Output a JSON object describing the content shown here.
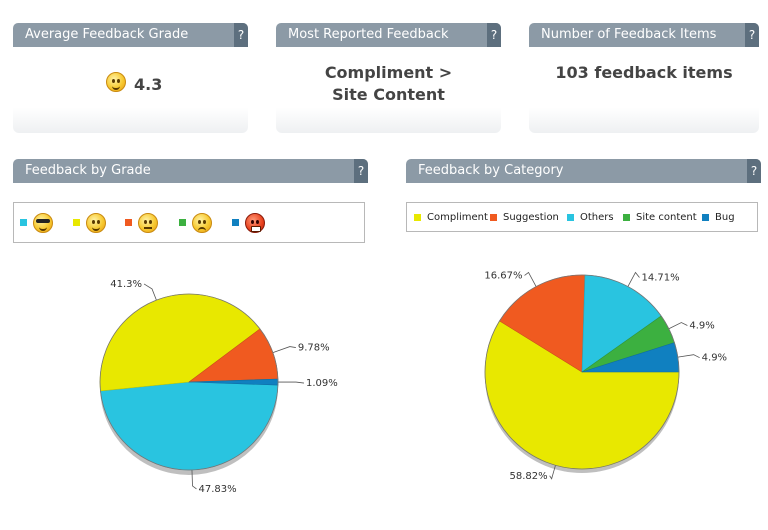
{
  "kpis": [
    {
      "title": "Average Feedback Grade",
      "value": "4.3",
      "icon": "smiley-face-icon"
    },
    {
      "title": "Most Reported Feedback",
      "value": "Compliment > Site Content"
    },
    {
      "title": "Number of Feedback Items",
      "value": "103 feedback items"
    }
  ],
  "help_label": "?",
  "grade_chart": {
    "title": "Feedback by Grade",
    "legend": [
      {
        "icon": "cool-face-icon",
        "color": "#29c4e0"
      },
      {
        "icon": "happy-face-icon",
        "color": "#e8e800"
      },
      {
        "icon": "neutral-face-icon",
        "color": "#f05a20"
      },
      {
        "icon": "sad-face-icon",
        "color": "#3cb040"
      },
      {
        "icon": "angry-face-icon",
        "color": "#1080c0"
      }
    ]
  },
  "category_chart": {
    "title": "Feedback by Category",
    "legend": [
      {
        "label": "Compliment",
        "color": "#e8e800"
      },
      {
        "label": "Suggestion",
        "color": "#f05a20"
      },
      {
        "label": "Others",
        "color": "#29c4e0"
      },
      {
        "label": "Site content",
        "color": "#3cb040"
      },
      {
        "label": "Bug",
        "color": "#1080c0"
      }
    ]
  },
  "chart_data": [
    {
      "type": "pie",
      "title": "Feedback by Grade",
      "slices": [
        {
          "value": 47.83,
          "label": "47.83%",
          "color": "#29c4e0"
        },
        {
          "value": 41.3,
          "label": "41.3%",
          "color": "#e8e800"
        },
        {
          "value": 9.78,
          "label": "9.78%",
          "color": "#f05a20"
        },
        {
          "value": 1.09,
          "label": "1.09%",
          "color": "#1080c0"
        }
      ]
    },
    {
      "type": "pie",
      "title": "Feedback by Category",
      "slices": [
        {
          "category": "Compliment",
          "value": 58.82,
          "label": "58.82%",
          "color": "#e8e800"
        },
        {
          "category": "Suggestion",
          "value": 16.67,
          "label": "16.67%",
          "color": "#f05a20"
        },
        {
          "category": "Others",
          "value": 14.71,
          "label": "14.71%",
          "color": "#29c4e0"
        },
        {
          "category": "Site content",
          "value": 4.9,
          "label": "4.9%",
          "color": "#3cb040"
        },
        {
          "category": "Bug",
          "value": 4.9,
          "label": "4.9%",
          "color": "#1080c0"
        }
      ]
    }
  ]
}
